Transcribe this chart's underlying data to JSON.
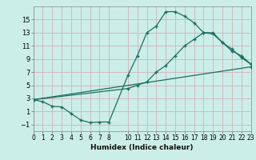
{
  "xlabel": "Humidex (Indice chaleur)",
  "xlim": [
    0,
    23
  ],
  "ylim": [
    -2,
    17
  ],
  "yticks": [
    -1,
    1,
    3,
    5,
    7,
    9,
    11,
    13,
    15
  ],
  "bg_color": "#cceee8",
  "grid_color": "#d4b0b8",
  "line_color": "#1a7060",
  "line1_x": [
    0,
    1,
    2,
    3,
    4,
    5,
    6,
    7,
    8,
    10,
    11,
    12,
    13,
    14,
    15,
    16,
    17,
    18,
    19,
    20,
    21,
    22,
    23
  ],
  "line1_y": [
    2.8,
    2.5,
    1.8,
    1.7,
    0.7,
    -0.3,
    -0.7,
    -0.6,
    -0.6,
    6.5,
    9.5,
    13.0,
    14.0,
    16.2,
    16.2,
    15.5,
    14.5,
    13.0,
    12.8,
    11.5,
    10.5,
    9.2,
    8.2
  ],
  "line2_x": [
    0,
    10,
    11,
    12,
    13,
    14,
    15,
    16,
    17,
    18,
    19,
    20,
    21,
    22,
    23
  ],
  "line2_y": [
    2.8,
    4.5,
    5.0,
    5.5,
    7.0,
    8.0,
    9.5,
    11.0,
    12.0,
    13.0,
    13.0,
    11.5,
    10.2,
    9.5,
    8.2
  ],
  "line3_x": [
    0,
    23
  ],
  "line3_y": [
    2.8,
    7.8
  ],
  "xtick_positions": [
    0,
    1,
    2,
    3,
    4,
    5,
    6,
    7,
    8,
    10,
    11,
    12,
    13,
    14,
    15,
    16,
    17,
    18,
    19,
    20,
    21,
    22,
    23
  ],
  "xtick_labels": [
    "0",
    "1",
    "2",
    "3",
    "4",
    "5",
    "6",
    "7",
    "8",
    "10",
    "11",
    "12",
    "13",
    "14",
    "15",
    "16",
    "17",
    "18",
    "19",
    "20",
    "21",
    "22",
    "23"
  ]
}
